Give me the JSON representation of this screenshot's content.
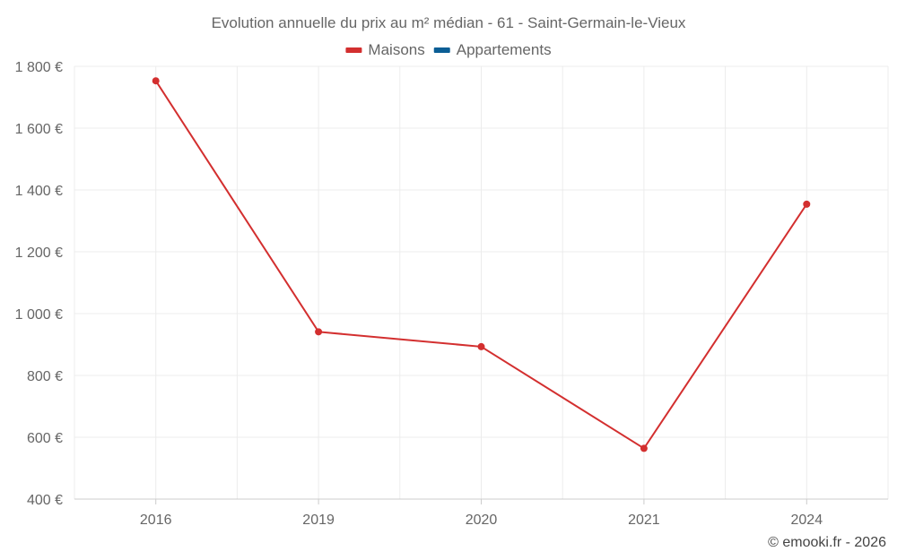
{
  "chart_data": {
    "type": "line",
    "title": "Evolution annuelle du prix au m² médian - 61 - Saint-Germain-le-Vieux",
    "categories": [
      "2016",
      "2019",
      "2020",
      "2021",
      "2024"
    ],
    "series": [
      {
        "name": "Maisons",
        "color": "#d32f2f",
        "values": [
          1753,
          941,
          893,
          564,
          1354
        ]
      },
      {
        "name": "Appartements",
        "color": "#0b5e95",
        "values": [
          null,
          null,
          null,
          null,
          null
        ]
      }
    ],
    "ylim": [
      400,
      1800
    ],
    "yticks": [
      400,
      600,
      800,
      1000,
      1200,
      1400,
      1600,
      1800
    ],
    "ytick_labels": [
      "400 €",
      "600 €",
      "800 €",
      "1 000 €",
      "1 200 €",
      "1 400 €",
      "1 600 €",
      "1 800 €"
    ],
    "xlabel": "",
    "ylabel": "",
    "grid": true,
    "legend_position": "top-center"
  },
  "credit": "© emooki.fr - 2026"
}
